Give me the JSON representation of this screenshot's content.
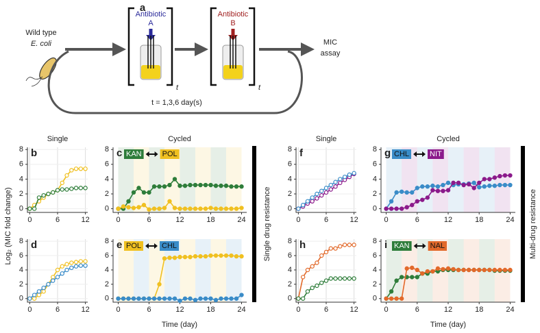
{
  "diagram": {
    "letter": "a",
    "wild_type": "Wild type",
    "species": "E. coli",
    "antibiotic_a": "Antibiotic",
    "drug_a": "A",
    "antibiotic_b": "Antibiotic",
    "drug_b": "B",
    "assay_1": "MIC",
    "assay_2": "assay",
    "t_a": "t",
    "t_b": "t",
    "time_note": "t = 1,3,6 day(s)"
  },
  "figure": {
    "y_label": "Log₂ (MIC fold change)",
    "x_label_left": "Time (day)",
    "x_label_right": "Time (day)",
    "single_left": "Single",
    "cycled_left": "Cycled",
    "single_right": "Single",
    "cycled_right": "Cycled",
    "group_left": "Single drug resistance",
    "group_right": "Multi-drug resistance"
  },
  "chart_data": [
    {
      "type": "line",
      "label": "b",
      "markers": "hollow",
      "grid": true,
      "x": [
        0,
        1,
        2,
        3,
        4,
        5,
        6,
        7,
        8,
        9,
        10,
        11,
        12
      ],
      "xlim": [
        -0.5,
        12.5
      ],
      "xticks": [
        0,
        6,
        12
      ],
      "ylim": [
        -0.5,
        8.3
      ],
      "yticks": [
        0,
        2,
        4,
        6,
        8
      ],
      "series": [
        {
          "color": "#f0c020",
          "values": [
            0,
            0.5,
            1,
            1.5,
            2,
            2.2,
            2.5,
            3.5,
            4.5,
            5.2,
            5.4,
            5.4,
            5.4
          ]
        },
        {
          "color": "#2e7d3a",
          "values": [
            0,
            0,
            1.5,
            1.8,
            2,
            2.2,
            2.5,
            2.6,
            2.6,
            2.7,
            2.8,
            2.8,
            2.8
          ]
        }
      ]
    },
    {
      "type": "line",
      "label": "c",
      "markers": "filled",
      "grid": false,
      "x": [
        0,
        1,
        2,
        3,
        4,
        5,
        6,
        7,
        8,
        9,
        10,
        11,
        12,
        13,
        14,
        15,
        16,
        17,
        18,
        19,
        20,
        21,
        22,
        23,
        24
      ],
      "xlim": [
        -1,
        25
      ],
      "xticks": [
        0,
        6,
        12,
        18,
        24
      ],
      "ylim": [
        -0.5,
        8.3
      ],
      "yticks": [
        0,
        2,
        4,
        6,
        8
      ],
      "series": [
        {
          "name": "KAN",
          "color": "#2e7d3a",
          "values": [
            0,
            0,
            1,
            2.2,
            2.8,
            2.2,
            2.2,
            3,
            3,
            3,
            3.2,
            4,
            3.1,
            3.1,
            3.2,
            3.2,
            3.2,
            3.2,
            3.2,
            3.1,
            3.1,
            3.1,
            3,
            3,
            3
          ]
        },
        {
          "name": "POL",
          "color": "#f0c020",
          "values": [
            0,
            0.3,
            0.2,
            0.1,
            0.2,
            0.5,
            -0.1,
            0,
            0,
            0.1,
            1,
            0.1,
            0,
            0,
            0,
            0,
            0,
            0,
            0.1,
            0,
            0,
            0,
            0,
            0,
            0.1
          ]
        }
      ]
    },
    {
      "type": "line",
      "label": "d",
      "markers": "hollow",
      "grid": true,
      "x": [
        0,
        1,
        2,
        3,
        4,
        5,
        6,
        7,
        8,
        9,
        10,
        11,
        12
      ],
      "xlim": [
        -0.5,
        12.5
      ],
      "xticks": [
        0,
        6,
        12
      ],
      "ylim": [
        -0.5,
        8.3
      ],
      "yticks": [
        0,
        2,
        4,
        6,
        8
      ],
      "series": [
        {
          "color": "#f0c020",
          "values": [
            0,
            0,
            0.5,
            1,
            2,
            3,
            4,
            4.5,
            4.8,
            5,
            5.1,
            5.2,
            5.2
          ]
        },
        {
          "color": "#3a8cc8",
          "values": [
            0,
            0.5,
            1,
            1.5,
            2,
            2.5,
            3,
            3.5,
            4,
            4.3,
            4.5,
            4.6,
            4.6
          ]
        }
      ]
    },
    {
      "type": "line",
      "label": "e",
      "markers": "filled",
      "grid": false,
      "x": [
        0,
        1,
        2,
        3,
        4,
        5,
        6,
        7,
        8,
        9,
        10,
        11,
        12,
        13,
        14,
        15,
        16,
        17,
        18,
        19,
        20,
        21,
        22,
        23,
        24
      ],
      "xlim": [
        -1,
        25
      ],
      "xticks": [
        0,
        6,
        12,
        18,
        24
      ],
      "ylim": [
        -0.5,
        8.3
      ],
      "yticks": [
        0,
        2,
        4,
        6,
        8
      ],
      "series": [
        {
          "name": "POL",
          "color": "#f0c020",
          "values": [
            0,
            0,
            0,
            0,
            0,
            0,
            0,
            0,
            2,
            5.6,
            5.7,
            5.7,
            5.8,
            5.8,
            5.8,
            5.9,
            5.9,
            5.9,
            6,
            6,
            6,
            6,
            6,
            5.9,
            5.9
          ]
        },
        {
          "name": "CHL",
          "color": "#3a8cc8",
          "values": [
            0,
            0,
            0,
            0,
            0,
            0,
            0,
            0,
            0,
            0,
            0,
            0,
            -0.3,
            0,
            0,
            -0.2,
            0,
            0,
            0,
            -0.2,
            0,
            0,
            0,
            0,
            0.5
          ]
        }
      ]
    },
    {
      "type": "line",
      "label": "f",
      "markers": "hollow",
      "grid": true,
      "x": [
        0,
        1,
        2,
        3,
        4,
        5,
        6,
        7,
        8,
        9,
        10,
        11,
        12
      ],
      "xlim": [
        -0.5,
        12.5
      ],
      "xticks": [
        0,
        6,
        12
      ],
      "ylim": [
        -0.5,
        8.3
      ],
      "yticks": [
        0,
        2,
        4,
        6,
        8
      ],
      "series": [
        {
          "color": "#8b1a8b",
          "values": [
            0,
            0.3,
            0.7,
            1,
            1.4,
            1.8,
            2.2,
            2.6,
            3,
            3.5,
            3.9,
            4.3,
            4.7
          ]
        },
        {
          "color": "#3a8cc8",
          "values": [
            0,
            0.5,
            1,
            1.5,
            2,
            2.4,
            2.8,
            3.2,
            3.6,
            4,
            4.3,
            4.6,
            4.8
          ]
        }
      ]
    },
    {
      "type": "line",
      "label": "g",
      "markers": "filled",
      "grid": false,
      "x": [
        0,
        1,
        2,
        3,
        4,
        5,
        6,
        7,
        8,
        9,
        10,
        11,
        12,
        13,
        14,
        15,
        16,
        17,
        18,
        19,
        20,
        21,
        22,
        23,
        24
      ],
      "xlim": [
        -1,
        25
      ],
      "xticks": [
        0,
        6,
        12,
        18,
        24
      ],
      "ylim": [
        -0.5,
        8.3
      ],
      "yticks": [
        0,
        2,
        4,
        6,
        8
      ],
      "series": [
        {
          "name": "CHL",
          "color": "#3a8cc8",
          "values": [
            0,
            1,
            2.2,
            2.3,
            2.2,
            2.2,
            2.8,
            3,
            3,
            3.1,
            3,
            3.2,
            3.5,
            3.2,
            3.3,
            3.3,
            3.4,
            3.5,
            2.9,
            3,
            3.1,
            3.1,
            3.2,
            3.2,
            3.2
          ]
        },
        {
          "name": "NIT",
          "color": "#8b1a8b",
          "values": [
            0,
            0,
            0,
            0,
            0.2,
            0.5,
            1,
            1.2,
            1.5,
            2.5,
            2.4,
            2.4,
            2.5,
            3.5,
            3.5,
            3.2,
            3.3,
            2.8,
            3.5,
            4,
            4,
            4.2,
            4.4,
            4.5,
            4.5
          ]
        }
      ]
    },
    {
      "type": "line",
      "label": "h",
      "markers": "hollow",
      "grid": true,
      "x": [
        0,
        1,
        2,
        3,
        4,
        5,
        6,
        7,
        8,
        9,
        10,
        11,
        12
      ],
      "xlim": [
        -0.5,
        12.5
      ],
      "xticks": [
        0,
        6,
        12
      ],
      "ylim": [
        -0.5,
        8.3
      ],
      "yticks": [
        0,
        2,
        4,
        6,
        8
      ],
      "series": [
        {
          "color": "#e2692a",
          "values": [
            0,
            3,
            4,
            4.5,
            5,
            6,
            6.5,
            7,
            7,
            7.3,
            7.5,
            7.5,
            7.5
          ]
        },
        {
          "color": "#2e7d3a",
          "values": [
            0,
            0,
            1,
            1.5,
            1.8,
            2.2,
            2.5,
            2.8,
            2.8,
            2.8,
            2.8,
            2.8,
            2.8
          ]
        }
      ]
    },
    {
      "type": "line",
      "label": "i",
      "markers": "filled",
      "grid": false,
      "x": [
        0,
        1,
        2,
        3,
        4,
        5,
        6,
        7,
        8,
        9,
        10,
        11,
        12,
        13,
        14,
        15,
        16,
        17,
        18,
        19,
        20,
        21,
        22,
        23,
        24
      ],
      "xlim": [
        -1,
        25
      ],
      "xticks": [
        0,
        6,
        12,
        18,
        24
      ],
      "ylim": [
        -0.5,
        8.3
      ],
      "yticks": [
        0,
        2,
        4,
        6,
        8
      ],
      "series": [
        {
          "name": "KAN",
          "color": "#2e7d3a",
          "values": [
            0,
            1,
            2.5,
            3,
            3,
            3,
            3,
            3.5,
            3.5,
            3.8,
            3.8,
            4,
            4,
            4,
            4,
            4,
            4,
            4,
            4,
            4,
            4,
            3.9,
            3.9,
            3.9,
            3.9
          ]
        },
        {
          "name": "NAL",
          "color": "#e2692a",
          "values": [
            0,
            0,
            0,
            0,
            4.2,
            4.3,
            4,
            3.5,
            3.8,
            3.8,
            4.2,
            4.1,
            4.2,
            4.1,
            4,
            4,
            4,
            4,
            4,
            4,
            4,
            4,
            4,
            4,
            4
          ]
        }
      ]
    }
  ]
}
